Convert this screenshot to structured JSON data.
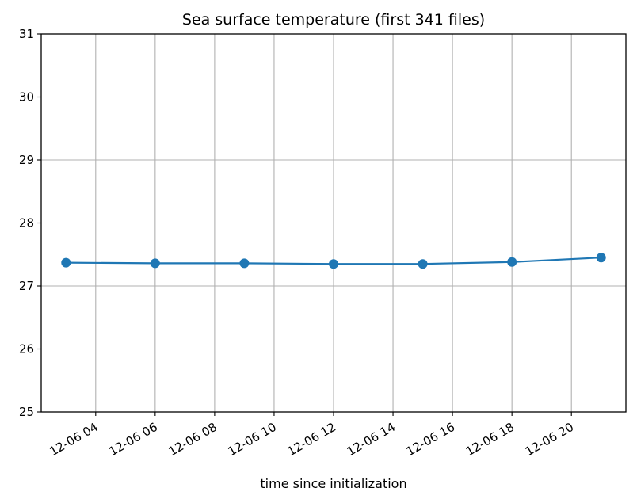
{
  "chart_data": {
    "type": "line",
    "title": "Sea surface temperature (first 341 files)",
    "xlabel": "time since initialization",
    "ylabel": "",
    "x_type": "time",
    "xlim": [
      "12-06 02:10",
      "12-06 21:50"
    ],
    "ylim": [
      25,
      31
    ],
    "grid": true,
    "x_ticks": [
      "12-06 04",
      "12-06 06",
      "12-06 08",
      "12-06 10",
      "12-06 12",
      "12-06 14",
      "12-06 16",
      "12-06 18",
      "12-06 20"
    ],
    "y_ticks": [
      "25",
      "26",
      "27",
      "28",
      "29",
      "30",
      "31"
    ],
    "series": [
      {
        "color": "#1f77b4",
        "marker": "circle",
        "x": [
          "12-06 03:00",
          "12-06 06:00",
          "12-06 09:00",
          "12-06 12:00",
          "12-06 15:00",
          "12-06 18:00",
          "12-06 21:00"
        ],
        "values": [
          27.37,
          27.36,
          27.36,
          27.35,
          27.35,
          27.38,
          27.45
        ]
      }
    ]
  }
}
